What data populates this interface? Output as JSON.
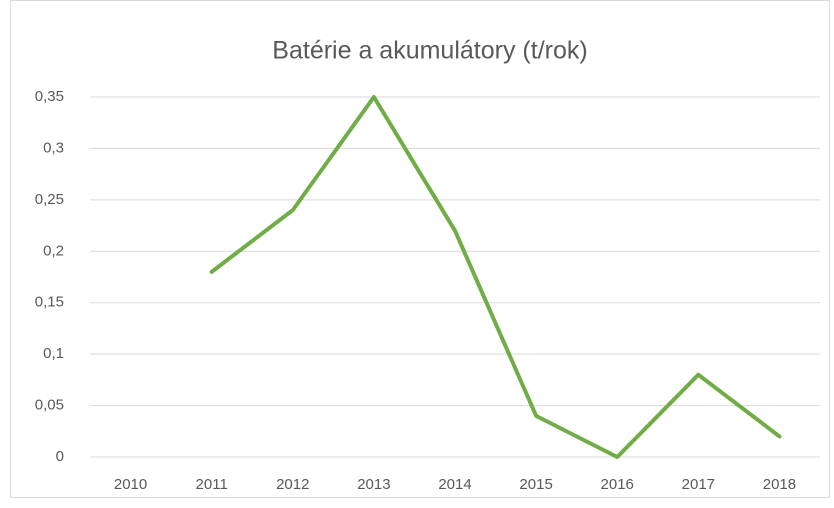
{
  "chart_data": {
    "type": "line",
    "title": "Batérie a akumulátory (t/rok)",
    "categories": [
      "2010",
      "2011",
      "2012",
      "2013",
      "2014",
      "2015",
      "2016",
      "2017",
      "2018"
    ],
    "values": [
      null,
      0.18,
      0.24,
      0.35,
      0.22,
      0.04,
      0,
      0.08,
      0.02
    ],
    "color": "#70ad47",
    "ylim": [
      0,
      0.35
    ],
    "yticks": [
      0,
      {
        "value": 0.05,
        "label": "0,05"
      },
      {
        "value": 0.1,
        "label": "0,1"
      },
      {
        "value": 0.15,
        "label": "0,15"
      },
      {
        "value": 0.2,
        "label": "0,2"
      },
      {
        "value": 0.25,
        "label": "0,25"
      },
      {
        "value": 0.3,
        "label": "0,3"
      },
      {
        "value": 0.35,
        "label": "0,35"
      }
    ],
    "grid": true
  }
}
